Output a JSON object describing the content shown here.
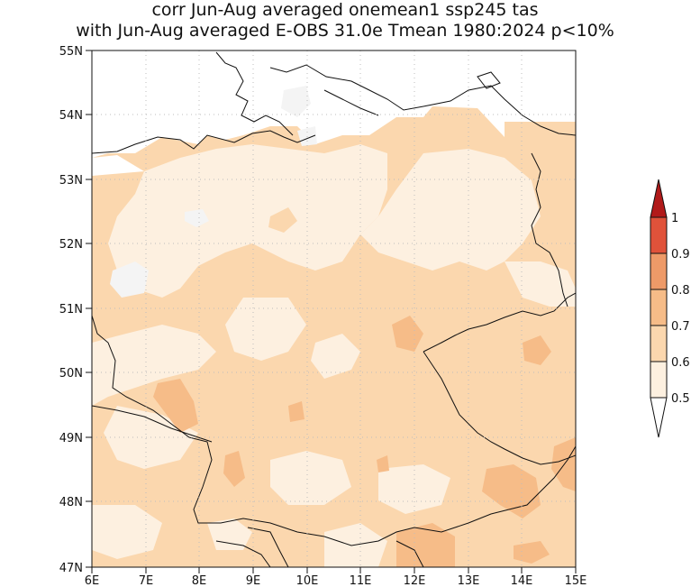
{
  "title": {
    "line1": "corr Jun-Aug averaged onemean1 ssp245 tas",
    "line2": "with Jun-Aug averaged E-OBS 31.0e Tmean 1980:2024 p<10%"
  },
  "map": {
    "lon_range": [
      6,
      15
    ],
    "lat_range": [
      47,
      55
    ],
    "lon_ticks": [
      "6E",
      "7E",
      "8E",
      "9E",
      "10E",
      "11E",
      "12E",
      "13E",
      "14E",
      "15E"
    ],
    "lat_ticks": [
      "55N",
      "54N",
      "53N",
      "52N",
      "51N",
      "50N",
      "49N",
      "48N",
      "47N"
    ],
    "grid": "dotted"
  },
  "colorbar": {
    "labels": [
      "1",
      "0.9",
      "0.8",
      "0.7",
      "0.6",
      "0.5"
    ],
    "bins": [
      {
        "range": "0.5-0.6",
        "color": "#fdf0e0"
      },
      {
        "range": "0.6-0.7",
        "color": "#fbd7ae"
      },
      {
        "range": "0.7-0.8",
        "color": "#f6bc88"
      },
      {
        "range": "0.8-0.9",
        "color": "#ee9a68"
      },
      {
        "range": "0.9-1",
        "color": "#e0523a"
      },
      {
        "range": ">1",
        "color": "#b11a1a"
      }
    ]
  }
}
